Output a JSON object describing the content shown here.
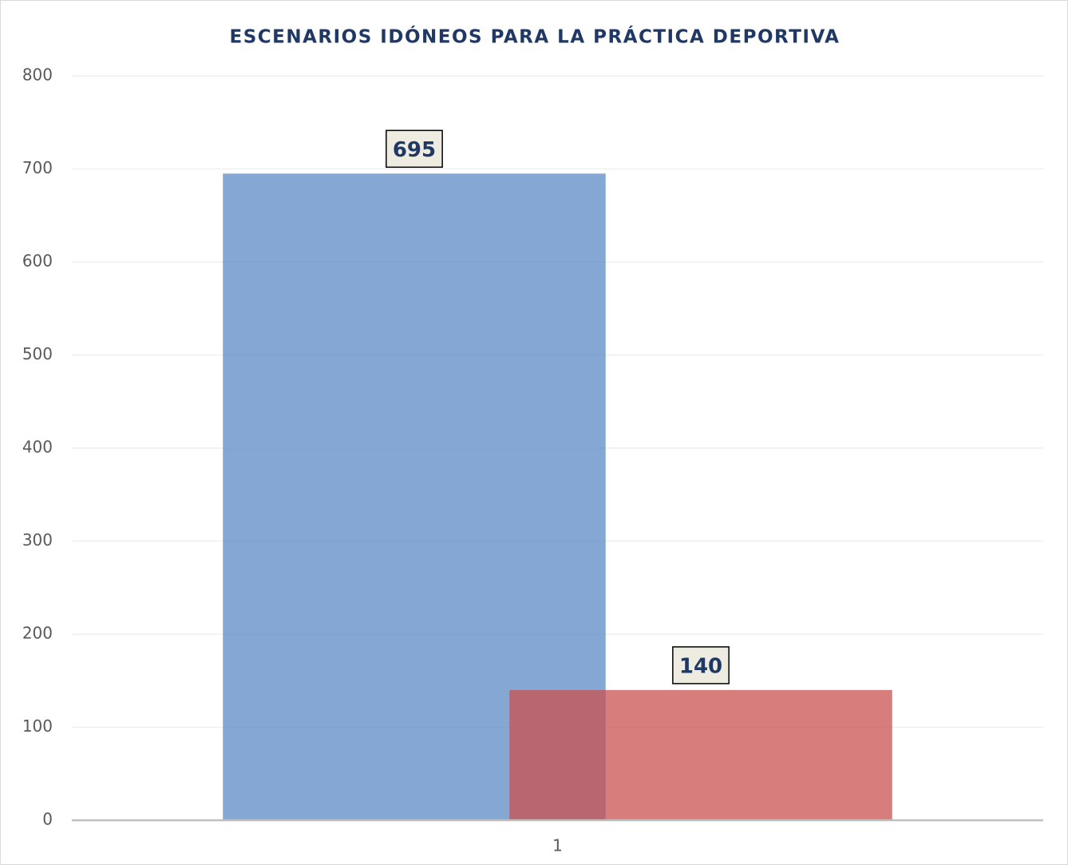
{
  "chart_data": {
    "type": "bar",
    "title": "ESCENARIOS IDÓNEOS PARA LA PRÁCTICA DEPORTIVA",
    "categories": [
      "1"
    ],
    "series": [
      {
        "color": "#5b8ac4",
        "values": [
          695
        ]
      },
      {
        "color": "#c9514f",
        "values": [
          140
        ]
      }
    ],
    "ylim": [
      0,
      800
    ],
    "yticks": [
      0,
      100,
      200,
      300,
      400,
      500,
      600,
      700,
      800
    ],
    "grid": true
  }
}
